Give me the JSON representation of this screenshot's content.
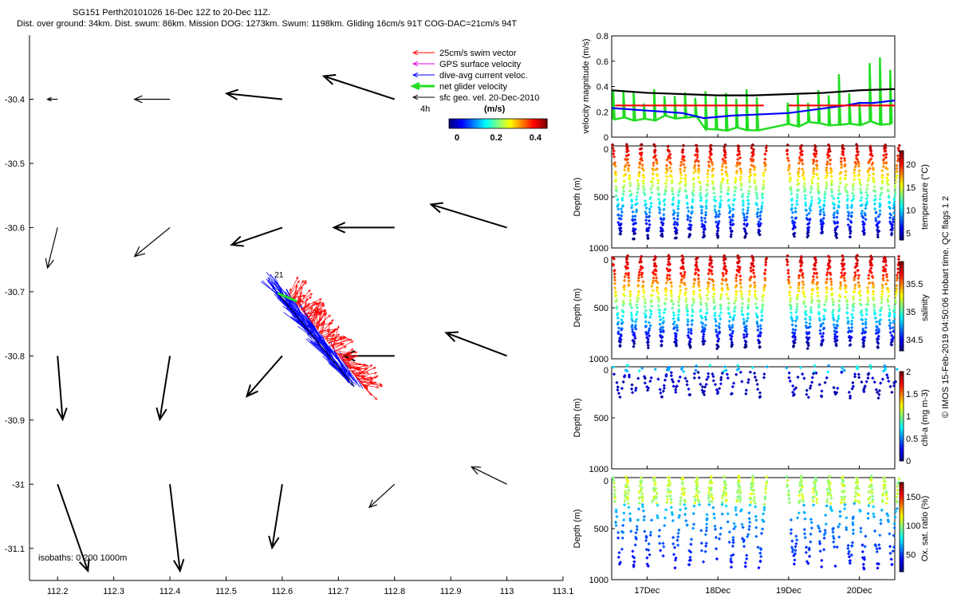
{
  "header": {
    "line1": "SG151 Perth20101026 16-Dec 12Z to 20-Dec 11Z.",
    "line2": "Dist. over ground: 34km. Dist. swum: 86km. Mission DOG: 1273km. Swum: 1198km. Gliding 16cm/s 91T COG-DAC=21cm/s 94T"
  },
  "colors": {
    "swim": "#ff0000",
    "gps": "#dd00dd",
    "dac": "#0000ff",
    "net": "#22dd22",
    "geo": "#000000"
  },
  "chart_data": [
    {
      "type": "map",
      "name": "glider track and velocity map",
      "xlim": [
        112.15,
        113.1
      ],
      "ylim": [
        -31.15,
        -30.3
      ],
      "xticks": [
        112.2,
        112.3,
        112.4,
        112.5,
        112.6,
        112.7,
        112.8,
        112.9,
        113,
        113.1
      ],
      "xtick_labels": [
        "112.2",
        "112.3",
        "112.4",
        "112.5",
        "112.6",
        "112.7",
        "112.8",
        "112.9",
        "113",
        "113.1"
      ],
      "yticks": [
        -30.4,
        -30.5,
        -30.6,
        -30.7,
        -30.8,
        -30.9,
        -31,
        -31.1
      ],
      "ytick_labels": [
        "-30.4",
        "-30.5",
        "-30.6",
        "-30.7",
        "-30.8",
        "-30.9",
        "-31",
        "-31.1"
      ],
      "legend": [
        {
          "label": "25cm/s swim vector",
          "color": "#ff0000"
        },
        {
          "label": "GPS surface velocity",
          "color": "#dd00dd"
        },
        {
          "label": "dive-avg current veloc.",
          "color": "#0000ff"
        },
        {
          "label": "net glider velocity",
          "color": "#22dd22"
        },
        {
          "label": "sfc geo. vel. 20-Dec-2010",
          "color": "#000000"
        }
      ],
      "legend_position": "top-right",
      "duration_label": "4h",
      "colorbar": {
        "title": "(m/s)",
        "ticks": [
          "0",
          "0.2",
          "0.4"
        ],
        "range": [
          0,
          0.5
        ]
      },
      "track_label": "21",
      "isobath_label": "isobaths: 0   200  1000m",
      "geo_vectors": [
        {
          "x": 112.2,
          "y": -30.4,
          "u": -0.02,
          "v": 0.0
        },
        {
          "x": 112.4,
          "y": -30.4,
          "u": -0.07,
          "v": 0.0
        },
        {
          "x": 112.6,
          "y": -30.4,
          "u": -0.11,
          "v": 0.01
        },
        {
          "x": 112.8,
          "y": -30.4,
          "u": -0.14,
          "v": 0.04
        },
        {
          "x": 112.2,
          "y": -30.6,
          "u": -0.02,
          "v": -0.07
        },
        {
          "x": 112.4,
          "y": -30.6,
          "u": -0.07,
          "v": -0.05
        },
        {
          "x": 112.6,
          "y": -30.6,
          "u": -0.1,
          "v": -0.03
        },
        {
          "x": 112.8,
          "y": -30.6,
          "u": -0.12,
          "v": 0.0
        },
        {
          "x": 113.0,
          "y": -30.6,
          "u": -0.15,
          "v": 0.04
        },
        {
          "x": 112.8,
          "y": -30.8,
          "u": -0.1,
          "v": 0.0
        },
        {
          "x": 113.0,
          "y": -30.8,
          "u": -0.12,
          "v": 0.04
        },
        {
          "x": 112.2,
          "y": -30.8,
          "u": 0.01,
          "v": -0.11
        },
        {
          "x": 112.4,
          "y": -30.8,
          "u": -0.02,
          "v": -0.11
        },
        {
          "x": 112.6,
          "y": -30.8,
          "u": -0.07,
          "v": -0.07
        },
        {
          "x": 112.2,
          "y": -31.0,
          "u": 0.06,
          "v": -0.15
        },
        {
          "x": 112.4,
          "y": -31.0,
          "u": 0.02,
          "v": -0.15
        },
        {
          "x": 112.6,
          "y": -31.0,
          "u": -0.02,
          "v": -0.11
        },
        {
          "x": 112.8,
          "y": -31.0,
          "u": -0.05,
          "v": -0.04
        },
        {
          "x": 113.0,
          "y": -31.0,
          "u": -0.07,
          "v": 0.03
        }
      ],
      "track": {
        "start": [
          112.595,
          -30.705
        ],
        "end": [
          112.728,
          -30.848
        ]
      }
    },
    {
      "type": "line",
      "name": "velocity magnitude",
      "ylabel": "velocity magnitude (m/s)",
      "ylim": [
        0,
        0.8
      ],
      "yticks": [
        0,
        0.2,
        0.4,
        0.6,
        0.8
      ],
      "ytick_labels": [
        "0",
        "0.2",
        "0.4",
        "0.6",
        "0.8"
      ],
      "xlim": [
        16.5,
        20.5
      ],
      "series": [
        {
          "name": "sfc geo. vel.",
          "color": "#000000",
          "x": [
            16.5,
            17.0,
            17.5,
            18.0,
            18.5,
            19.0,
            19.5,
            20.0,
            20.5
          ],
          "y": [
            0.37,
            0.35,
            0.34,
            0.33,
            0.33,
            0.34,
            0.35,
            0.37,
            0.38
          ]
        },
        {
          "name": "dive-avg current",
          "color": "#0000ff",
          "x": [
            16.5,
            17.0,
            17.5,
            17.8,
            18.2,
            18.6,
            19.0,
            19.4,
            19.8,
            20.0,
            20.2,
            20.5
          ],
          "y": [
            0.23,
            0.21,
            0.19,
            0.15,
            0.17,
            0.18,
            0.19,
            0.22,
            0.25,
            0.27,
            0.27,
            0.29
          ]
        },
        {
          "name": "swim",
          "color": "#ff0000",
          "x": [
            16.55,
            18.65,
            null,
            19.0,
            20.5
          ],
          "y": [
            0.25,
            0.25,
            null,
            0.25,
            0.25
          ]
        }
      ]
    },
    {
      "type": "scatter",
      "name": "temperature section",
      "ylabel": "Depth (m)",
      "ylim": [
        1000,
        0
      ],
      "yticks": [
        0,
        500,
        1000
      ],
      "ytick_labels": [
        "0",
        "500",
        "1000"
      ],
      "colorbar": {
        "label": "temperature (°C)",
        "ticks": [
          5,
          10,
          15,
          20
        ],
        "tick_labels": [
          "5",
          "10",
          "15",
          "20"
        ],
        "range": [
          3.5,
          23
        ]
      }
    },
    {
      "type": "scatter",
      "name": "salinity section",
      "ylabel": "Depth (m)",
      "ylim": [
        1000,
        0
      ],
      "yticks": [
        0,
        500,
        1000
      ],
      "ytick_labels": [
        "0",
        "500",
        "1000"
      ],
      "colorbar": {
        "label": "salinity",
        "ticks": [
          34.5,
          35,
          35.5
        ],
        "tick_labels": [
          "34.5",
          "35",
          "35.5"
        ],
        "range": [
          34.3,
          35.9
        ]
      }
    },
    {
      "type": "scatter",
      "name": "chlorophyll section",
      "ylabel": "Depth (m)",
      "ylim": [
        1000,
        0
      ],
      "yticks": [
        0,
        500,
        1000
      ],
      "ytick_labels": [
        "0",
        "500",
        "1000"
      ],
      "colorbar": {
        "label": "chl-a (mg m-3)",
        "ticks": [
          0,
          0.5,
          1,
          1.5,
          2
        ],
        "tick_labels": [
          "0",
          "0.5",
          "1",
          "1.5",
          "2"
        ],
        "range": [
          0,
          2
        ]
      }
    },
    {
      "type": "scatter",
      "name": "oxygen saturation section",
      "ylabel": "Depth (m)",
      "ylim": [
        1000,
        0
      ],
      "yticks": [
        0,
        500,
        1000
      ],
      "ytick_labels": [
        "0",
        "500",
        "1000"
      ],
      "colorbar": {
        "label": "Ox. sat. ratio (%)",
        "ticks": [
          50,
          100,
          150
        ],
        "tick_labels": [
          "50",
          "100",
          "150"
        ],
        "range": [
          20,
          175
        ]
      }
    }
  ],
  "time_axis": {
    "ticks": [
      17,
      18,
      19,
      20
    ],
    "tick_labels": [
      "17Dec",
      "18Dec",
      "19Dec",
      "20Dec"
    ],
    "gap": [
      18.6,
      18.95
    ]
  },
  "side_text": "© IMOS 15-Feb-2019 04:50:06 Hobart time. QC flags 1  2"
}
